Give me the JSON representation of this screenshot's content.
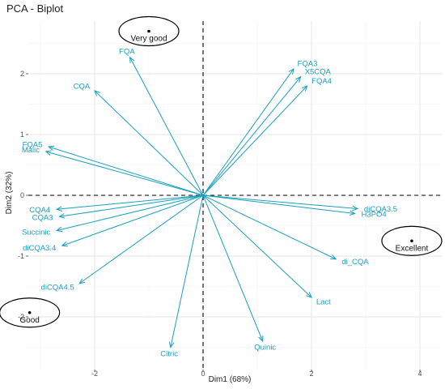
{
  "chart_data": {
    "type": "scatter",
    "title": "PCA - Biplot",
    "xlabel": "Dim1 (68%)",
    "ylabel": "Dim2 (32%)",
    "xlim": [
      -3.5,
      4.2
    ],
    "ylim": [
      -2.6,
      2.9
    ],
    "x_ticks": [
      -2,
      0,
      2,
      4
    ],
    "y_ticks": [
      -2,
      -1,
      0,
      1,
      2
    ],
    "grid": true,
    "arrow_color": "#1a9fbf",
    "variables": [
      {
        "label": "FQA",
        "x": -1.35,
        "y": 2.27
      },
      {
        "label": "CQA",
        "x": -2.0,
        "y": 1.72
      },
      {
        "label": "FQA5",
        "x": -2.85,
        "y": 0.8
      },
      {
        "label": "Malic",
        "x": -2.9,
        "y": 0.72
      },
      {
        "label": "CQA4",
        "x": -2.7,
        "y": -0.23
      },
      {
        "label": "CQA3",
        "x": -2.65,
        "y": -0.35
      },
      {
        "label": "Succinic",
        "x": -2.7,
        "y": -0.58
      },
      {
        "label": "diCQA3.4",
        "x": -2.6,
        "y": -0.83
      },
      {
        "label": "diCQA4.5",
        "x": -2.28,
        "y": -1.45
      },
      {
        "label": "Citric",
        "x": -0.6,
        "y": -2.5
      },
      {
        "label": "Quinic",
        "x": 1.1,
        "y": -2.4
      },
      {
        "label": "Lact",
        "x": 2.0,
        "y": -1.68
      },
      {
        "label": "di_CQA",
        "x": 2.45,
        "y": -1.05
      },
      {
        "label": "H3PO4",
        "x": 2.8,
        "y": -0.3
      },
      {
        "label": "diCQA3.5",
        "x": 2.85,
        "y": -0.22
      },
      {
        "label": "FQA3",
        "x": 1.67,
        "y": 2.08
      },
      {
        "label": "X5CQA",
        "x": 1.8,
        "y": 1.95
      },
      {
        "label": "FQA4",
        "x": 1.92,
        "y": 1.8
      }
    ],
    "individuals": [
      {
        "label": "Very good",
        "x": -1.0,
        "y": 2.7
      },
      {
        "label": "Excellent",
        "x": 3.85,
        "y": -0.75
      },
      {
        "label": "Good",
        "x": -3.2,
        "y": -1.93
      }
    ]
  }
}
